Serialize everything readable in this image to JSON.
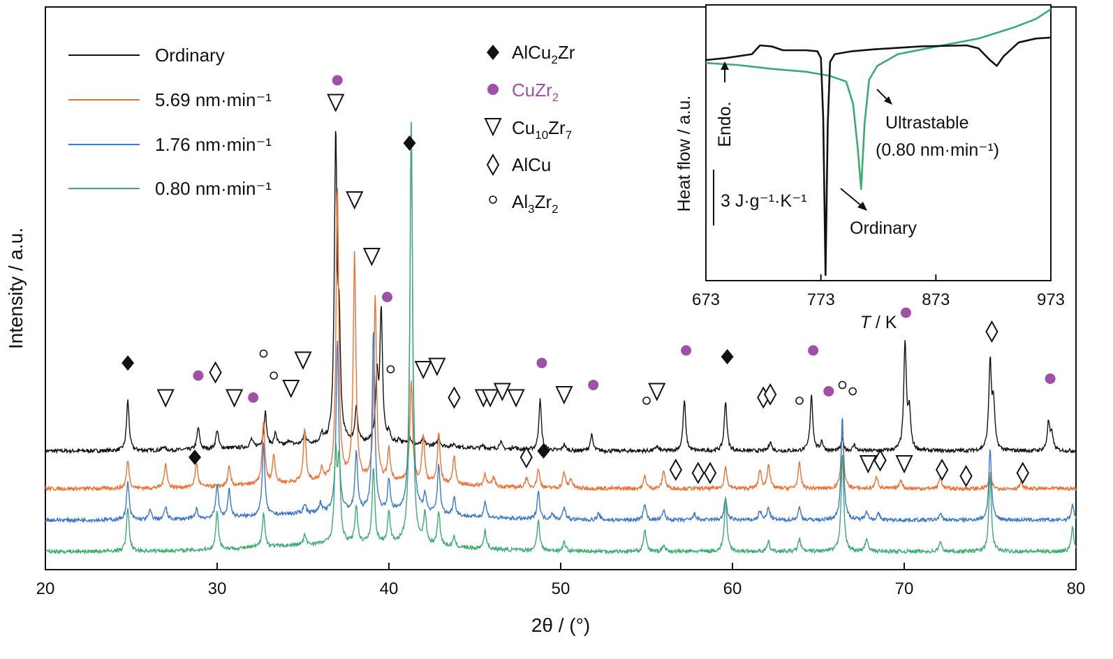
{
  "chart_data": [
    {
      "type": "line",
      "xlabel": "2θ / (°)",
      "ylabel": "Intensity / a.u.",
      "xlim": [
        20,
        80
      ],
      "xticks": [
        20,
        30,
        40,
        50,
        60,
        70,
        80
      ],
      "y_ticks_shown": false,
      "grid": false,
      "legend_placement": "top-left",
      "series": [
        {
          "name": "Ordinary",
          "color": "#111111",
          "offset": 3.2,
          "peaks": [
            [
              24.8,
              1.6
            ],
            [
              26.9,
              0.12
            ],
            [
              28.9,
              0.7
            ],
            [
              30,
              0.6
            ],
            [
              32,
              0.25
            ],
            [
              32.8,
              1.1
            ],
            [
              33.4,
              0.4
            ],
            [
              34.2,
              0.15
            ],
            [
              35.1,
              0.35
            ],
            [
              36.1,
              0.25
            ],
            [
              36.9,
              9.6
            ],
            [
              37.1,
              3.2
            ],
            [
              38.1,
              1.1
            ],
            [
              39.3,
              2.0
            ],
            [
              39.55,
              4.2
            ],
            [
              40,
              0.3
            ],
            [
              40.6,
              0.15
            ],
            [
              41.2,
              0.25
            ],
            [
              42,
              0.2
            ],
            [
              42.9,
              0.25
            ],
            [
              43.8,
              0.1
            ],
            [
              45.5,
              0.1
            ],
            [
              46.5,
              0.25
            ],
            [
              47.3,
              0.1
            ],
            [
              48.8,
              1.6
            ],
            [
              50.2,
              0.2
            ],
            [
              51.8,
              0.5
            ],
            [
              55.6,
              0.15
            ],
            [
              57.2,
              1.6
            ],
            [
              59.6,
              1.6
            ],
            [
              62.2,
              0.3
            ],
            [
              64.6,
              1.8
            ],
            [
              65.2,
              0.3
            ],
            [
              66.4,
              0.35
            ],
            [
              67.1,
              0.2
            ],
            [
              70.05,
              3.4
            ],
            [
              70.3,
              1.2
            ],
            [
              75,
              2.8
            ],
            [
              75.2,
              1.4
            ],
            [
              78.4,
              0.9
            ],
            [
              78.6,
              0.5
            ]
          ]
        },
        {
          "name": "5.69 nm·min⁻¹",
          "color": "#f07030",
          "offset": 2.0,
          "peaks": [
            [
              24.8,
              0.9
            ],
            [
              27,
              0.8
            ],
            [
              28.8,
              0.8
            ],
            [
              30.7,
              0.6
            ],
            [
              32.7,
              2.0
            ],
            [
              33.3,
              0.9
            ],
            [
              35.1,
              1.7
            ],
            [
              36.1,
              0.4
            ],
            [
              37,
              9.4
            ],
            [
              38,
              7.2
            ],
            [
              39.2,
              5.9
            ],
            [
              40,
              1.0
            ],
            [
              41.3,
              3.2
            ],
            [
              42,
              1.5
            ],
            [
              42.9,
              1.6
            ],
            [
              43.8,
              0.9
            ],
            [
              45.6,
              0.4
            ],
            [
              46.1,
              0.3
            ],
            [
              48,
              0.3
            ],
            [
              48.7,
              0.6
            ],
            [
              50.2,
              0.5
            ],
            [
              50.6,
              0.3
            ],
            [
              54.9,
              0.4
            ],
            [
              56,
              0.6
            ],
            [
              59.6,
              0.7
            ],
            [
              61.6,
              0.6
            ],
            [
              62.1,
              0.8
            ],
            [
              63.9,
              0.8
            ],
            [
              66.4,
              1.9
            ],
            [
              68.4,
              0.4
            ],
            [
              69.8,
              0.3
            ],
            [
              72.1,
              0.4
            ],
            [
              75,
              0.5
            ],
            [
              76.8,
              0.2
            ]
          ]
        },
        {
          "name": "1.76 nm·min⁻¹",
          "color": "#3a78c8",
          "offset": 1.0,
          "peaks": [
            [
              24.8,
              1.2
            ],
            [
              26.1,
              0.3
            ],
            [
              27,
              0.4
            ],
            [
              28.8,
              0.3
            ],
            [
              30,
              1.1
            ],
            [
              30.7,
              0.9
            ],
            [
              32.7,
              2.3
            ],
            [
              35.1,
              0.3
            ],
            [
              36,
              0.3
            ],
            [
              37,
              5.5
            ],
            [
              38.1,
              1.9
            ],
            [
              39.1,
              5.8
            ],
            [
              40,
              1.0
            ],
            [
              41.3,
              12.4
            ],
            [
              42.1,
              0.6
            ],
            [
              42.9,
              1.6
            ],
            [
              43.8,
              0.6
            ],
            [
              45.6,
              0.5
            ],
            [
              48.7,
              0.9
            ],
            [
              49.5,
              0.2
            ],
            [
              50.2,
              0.4
            ],
            [
              52.2,
              0.2
            ],
            [
              54.9,
              0.5
            ],
            [
              56,
              0.3
            ],
            [
              57.8,
              0.2
            ],
            [
              59.6,
              0.7
            ],
            [
              61.6,
              0.3
            ],
            [
              62.1,
              0.4
            ],
            [
              63.9,
              0.4
            ],
            [
              66.4,
              3.3
            ],
            [
              67.8,
              0.3
            ],
            [
              68.5,
              0.2
            ],
            [
              72.1,
              0.2
            ],
            [
              75,
              2.3
            ],
            [
              79.8,
              0.5
            ]
          ]
        },
        {
          "name": "0.80 nm·min⁻¹",
          "color": "#3aac70",
          "offset": 0.0,
          "peaks": [
            [
              24.8,
              1.4
            ],
            [
              30,
              1.2
            ],
            [
              32.7,
              1.1
            ],
            [
              35.1,
              0.3
            ],
            [
              36.9,
              2.8
            ],
            [
              37.1,
              2.5
            ],
            [
              38.1,
              1.2
            ],
            [
              39.1,
              2.4
            ],
            [
              40,
              1.0
            ],
            [
              41.3,
              13.5
            ],
            [
              42.1,
              1.0
            ],
            [
              42.9,
              1.1
            ],
            [
              43.8,
              0.3
            ],
            [
              45.6,
              0.6
            ],
            [
              48.7,
              1.0
            ],
            [
              50.2,
              0.3
            ],
            [
              54.9,
              0.7
            ],
            [
              56,
              0.2
            ],
            [
              59.6,
              1.7
            ],
            [
              62.1,
              0.3
            ],
            [
              63.9,
              0.4
            ],
            [
              66.4,
              3.1
            ],
            [
              67.8,
              0.4
            ],
            [
              72.1,
              0.3
            ],
            [
              75,
              2.4
            ],
            [
              79.8,
              0.8
            ]
          ]
        }
      ],
      "phase_legend": [
        {
          "symbol": "filled-diamond",
          "label": "AlCu",
          "sub": "2",
          "label_after": "Zr",
          "color": "#111111"
        },
        {
          "symbol": "filled-circle",
          "label": "CuZr",
          "sub": "2",
          "label_after": "",
          "color": "#a050a8"
        },
        {
          "symbol": "open-triangle-down",
          "label": "Cu",
          "sub": "10",
          "label_after": "Zr",
          "sub2": "7",
          "color": "#111111"
        },
        {
          "symbol": "open-diamond",
          "label": "AlCu",
          "sub": "",
          "label_after": "",
          "color": "#111111"
        },
        {
          "symbol": "open-circle",
          "label": "Al",
          "sub": "3",
          "label_after": "Zr",
          "sub2": "2",
          "color": "#111111"
        }
      ],
      "annotations": [
        {
          "symbol": "filled-diamond",
          "x": 24.8,
          "y": 6.0
        },
        {
          "symbol": "filled-circle",
          "x": 28.9,
          "y": 5.6
        },
        {
          "symbol": "filled-circle",
          "x": 32.1,
          "y": 4.9
        },
        {
          "symbol": "filled-circle",
          "x": 37.0,
          "y": 15.0
        },
        {
          "symbol": "filled-diamond",
          "x": 41.2,
          "y": 13.0
        },
        {
          "symbol": "filled-circle",
          "x": 39.9,
          "y": 8.1
        },
        {
          "symbol": "filled-circle",
          "x": 48.9,
          "y": 6.0
        },
        {
          "symbol": "filled-circle",
          "x": 51.9,
          "y": 5.3
        },
        {
          "symbol": "filled-circle",
          "x": 57.3,
          "y": 6.4
        },
        {
          "symbol": "filled-diamond",
          "x": 59.7,
          "y": 6.2
        },
        {
          "symbol": "filled-circle",
          "x": 64.7,
          "y": 6.4
        },
        {
          "symbol": "filled-circle",
          "x": 65.6,
          "y": 5.1
        },
        {
          "symbol": "filled-circle",
          "x": 70.1,
          "y": 7.6
        },
        {
          "symbol": "filled-circle",
          "x": 78.5,
          "y": 5.5
        },
        {
          "symbol": "filled-diamond",
          "x": 28.7,
          "y": 3.0
        },
        {
          "symbol": "filled-diamond",
          "x": 49.0,
          "y": 3.2
        },
        {
          "symbol": "open-circle",
          "x": 32.7,
          "y": 6.3
        },
        {
          "symbol": "open-circle",
          "x": 33.3,
          "y": 5.6
        },
        {
          "symbol": "open-circle",
          "x": 40.1,
          "y": 5.8
        },
        {
          "symbol": "open-circle",
          "x": 55.0,
          "y": 4.8
        },
        {
          "symbol": "open-circle",
          "x": 63.9,
          "y": 4.8
        },
        {
          "symbol": "open-circle",
          "x": 66.4,
          "y": 5.3
        },
        {
          "symbol": "open-circle",
          "x": 67.0,
          "y": 5.1
        },
        {
          "symbol": "open-triangle-down",
          "x": 27.0,
          "y": 4.9
        },
        {
          "symbol": "open-triangle-down",
          "x": 31.0,
          "y": 4.9
        },
        {
          "symbol": "open-triangle-down",
          "x": 34.3,
          "y": 5.2
        },
        {
          "symbol": "open-triangle-down",
          "x": 35.0,
          "y": 6.1
        },
        {
          "symbol": "open-triangle-down",
          "x": 36.9,
          "y": 14.3
        },
        {
          "symbol": "open-triangle-down",
          "x": 38.0,
          "y": 11.2
        },
        {
          "symbol": "open-triangle-down",
          "x": 39.0,
          "y": 9.4
        },
        {
          "symbol": "open-triangle-down",
          "x": 42.0,
          "y": 5.8
        },
        {
          "symbol": "open-triangle-down",
          "x": 42.8,
          "y": 5.9
        },
        {
          "symbol": "open-triangle-down",
          "x": 45.5,
          "y": 4.9
        },
        {
          "symbol": "open-triangle-down",
          "x": 45.9,
          "y": 4.9
        },
        {
          "symbol": "open-triangle-down",
          "x": 46.6,
          "y": 5.1
        },
        {
          "symbol": "open-triangle-down",
          "x": 47.4,
          "y": 4.9
        },
        {
          "symbol": "open-triangle-down",
          "x": 50.2,
          "y": 5.0
        },
        {
          "symbol": "open-triangle-down",
          "x": 55.6,
          "y": 5.1
        },
        {
          "symbol": "open-triangle-down",
          "x": 67.9,
          "y": 2.8
        },
        {
          "symbol": "open-triangle-down",
          "x": 70.0,
          "y": 2.8
        },
        {
          "symbol": "open-diamond",
          "x": 29.9,
          "y": 5.7
        },
        {
          "symbol": "open-diamond",
          "x": 43.8,
          "y": 4.9
        },
        {
          "symbol": "open-diamond",
          "x": 61.8,
          "y": 4.9
        },
        {
          "symbol": "open-diamond",
          "x": 62.2,
          "y": 5.0
        },
        {
          "symbol": "open-diamond",
          "x": 75.1,
          "y": 7.0
        },
        {
          "symbol": "open-diamond",
          "x": 48.0,
          "y": 3.0
        },
        {
          "symbol": "open-diamond",
          "x": 56.7,
          "y": 2.6
        },
        {
          "symbol": "open-diamond",
          "x": 58.0,
          "y": 2.5
        },
        {
          "symbol": "open-diamond",
          "x": 58.7,
          "y": 2.5
        },
        {
          "symbol": "open-diamond",
          "x": 68.6,
          "y": 2.9
        },
        {
          "symbol": "open-diamond",
          "x": 72.2,
          "y": 2.6
        },
        {
          "symbol": "open-diamond",
          "x": 73.6,
          "y": 2.4
        },
        {
          "symbol": "open-diamond",
          "x": 76.9,
          "y": 2.5
        }
      ]
    },
    {
      "type": "line",
      "xlabel_italic": "T",
      "xlabel_rest": " / K",
      "ylabel": "Heat flow / a.u.",
      "xlim": [
        673,
        973
      ],
      "xticks": [
        673,
        773,
        873,
        973
      ],
      "grid": false,
      "labels": {
        "endo": "Endo.",
        "scale": "3 J·g⁻¹·K⁻¹",
        "ultrastable": "Ultrastable",
        "ultrastable_rate": "(0.80 nm·min⁻¹)",
        "ordinary": "Ordinary"
      },
      "series": [
        {
          "name": "Ordinary",
          "color": "#111111",
          "points": [
            [
              673,
              0
            ],
            [
              690,
              0.2
            ],
            [
              713,
              0.6
            ],
            [
              720,
              1.5
            ],
            [
              730,
              1.4
            ],
            [
              740,
              1.0
            ],
            [
              760,
              1.0
            ],
            [
              770,
              0.9
            ],
            [
              773,
              0.2
            ],
            [
              775,
              -6
            ],
            [
              777,
              -22
            ],
            [
              779,
              -6.5
            ],
            [
              781,
              -0.2
            ],
            [
              785,
              0.6
            ],
            [
              800,
              0.9
            ],
            [
              820,
              1.1
            ],
            [
              860,
              1.4
            ],
            [
              900,
              1.5
            ],
            [
              910,
              1.2
            ],
            [
              920,
              0.0
            ],
            [
              926,
              -0.6
            ],
            [
              932,
              0.4
            ],
            [
              945,
              1.8
            ],
            [
              960,
              2.2
            ],
            [
              973,
              2.3
            ]
          ]
        },
        {
          "name": "Ultrastable (0.80 nm·min⁻¹)",
          "color": "#3aac70",
          "points": [
            [
              673,
              -0.3
            ],
            [
              700,
              -0.5
            ],
            [
              730,
              -0.9
            ],
            [
              760,
              -1.2
            ],
            [
              780,
              -1.6
            ],
            [
              795,
              -2.2
            ],
            [
              801,
              -4.5
            ],
            [
              805,
              -9.0
            ],
            [
              808,
              -13.2
            ],
            [
              811,
              -6.5
            ],
            [
              815,
              -2.0
            ],
            [
              822,
              -0.6
            ],
            [
              840,
              0.6
            ],
            [
              870,
              1.3
            ],
            [
              910,
              2.2
            ],
            [
              940,
              3.3
            ],
            [
              960,
              4.2
            ],
            [
              973,
              5.2
            ]
          ]
        }
      ]
    }
  ]
}
